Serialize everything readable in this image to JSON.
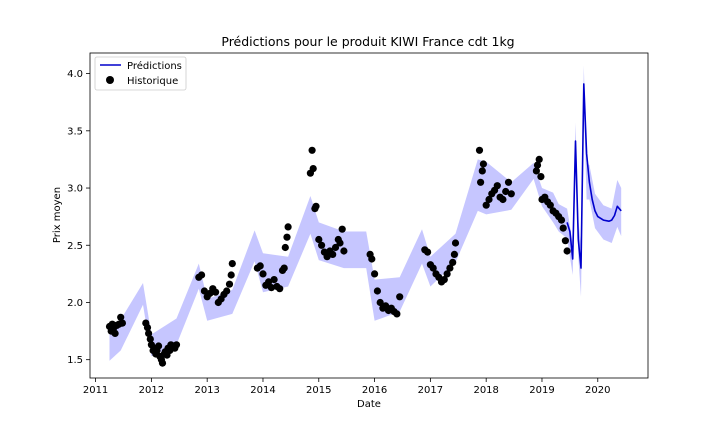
{
  "chart_data": {
    "type": "line",
    "title": "Prédictions pour le produit KIWI France cdt 1kg",
    "xlabel": "Date",
    "ylabel": "Prix moyen",
    "xlim": [
      2010.9,
      2020.9
    ],
    "ylim": [
      1.34,
      4.18
    ],
    "x_ticks": [
      2011,
      2012,
      2013,
      2014,
      2015,
      2016,
      2017,
      2018,
      2019,
      2020
    ],
    "x_tick_labels": [
      "2011",
      "2012",
      "2013",
      "2014",
      "2015",
      "2016",
      "2017",
      "2018",
      "2019",
      "2020"
    ],
    "y_ticks": [
      1.5,
      2.0,
      2.5,
      3.0,
      3.5,
      4.0
    ],
    "y_tick_labels": [
      "1.5",
      "2.0",
      "2.5",
      "3.0",
      "3.5",
      "4.0"
    ],
    "legend": {
      "position": "top-left",
      "entries": [
        {
          "label": "Prédictions",
          "marker": "line",
          "color": "#0000cc"
        },
        {
          "label": "Historique",
          "marker": "dot",
          "color": "#000000"
        }
      ]
    },
    "colors": {
      "prediction_line": "#0000cc",
      "interval_fill": "#b3b3ff",
      "points": "#000000"
    },
    "grid": false,
    "confidence_band": {
      "x": [
        2011.25,
        2011.45,
        2011.85,
        2012.0,
        2012.45,
        2012.85,
        2013.0,
        2013.45,
        2013.85,
        2014.0,
        2014.45,
        2014.85,
        2015.0,
        2015.45,
        2015.85,
        2016.0,
        2016.45,
        2016.85,
        2017.0,
        2017.45,
        2017.85,
        2018.0,
        2018.45,
        2018.85,
        2019.0,
        2019.2,
        2019.3,
        2019.45,
        2019.55,
        2019.6,
        2019.65,
        2019.7,
        2019.75,
        2019.8,
        2019.85,
        2019.95,
        2020.1,
        2020.25,
        2020.35,
        2020.42
      ],
      "lower": [
        1.49,
        1.58,
        1.98,
        1.53,
        1.63,
        2.12,
        1.84,
        1.9,
        2.36,
        2.09,
        2.14,
        2.6,
        2.37,
        2.3,
        2.3,
        1.84,
        1.92,
        2.34,
        2.14,
        2.35,
        2.8,
        2.77,
        2.81,
        3.08,
        2.84,
        2.7,
        2.62,
        2.56,
        2.24,
        3.25,
        2.4,
        2.05,
        3.75,
        2.9,
        2.9,
        2.65,
        2.55,
        2.52,
        2.66,
        2.58
      ],
      "upper": [
        1.76,
        1.85,
        2.17,
        1.72,
        1.86,
        2.34,
        2.03,
        2.11,
        2.63,
        2.43,
        2.4,
        2.93,
        2.7,
        2.62,
        2.62,
        2.2,
        2.22,
        2.64,
        2.4,
        2.6,
        3.25,
        3.23,
        3.05,
        3.22,
        3.0,
        2.96,
        2.86,
        2.82,
        2.52,
        3.57,
        2.72,
        2.5,
        4.07,
        3.22,
        3.2,
        2.95,
        2.85,
        2.82,
        3.07,
        3.0
      ]
    },
    "series": [
      {
        "name": "Prédictions",
        "type": "line",
        "x": [
          2019.45,
          2019.5,
          2019.55,
          2019.6,
          2019.65,
          2019.7,
          2019.75,
          2019.8,
          2019.85,
          2019.9,
          2019.95,
          2020.0,
          2020.1,
          2020.2,
          2020.25,
          2020.3,
          2020.35,
          2020.42
        ],
        "y": [
          2.7,
          2.62,
          2.38,
          3.41,
          2.55,
          2.3,
          3.91,
          3.3,
          3.05,
          2.9,
          2.8,
          2.75,
          2.72,
          2.71,
          2.72,
          2.76,
          2.84,
          2.8
        ]
      },
      {
        "name": "Historique",
        "type": "scatter",
        "x": [
          2011.25,
          2011.28,
          2011.3,
          2011.32,
          2011.35,
          2011.38,
          2011.42,
          2011.45,
          2011.48,
          2011.9,
          2011.93,
          2011.95,
          2011.98,
          2012.0,
          2012.03,
          2012.05,
          2012.08,
          2012.1,
          2012.13,
          2012.15,
          2012.18,
          2012.2,
          2012.23,
          2012.25,
          2012.28,
          2012.3,
          2012.33,
          2012.35,
          2012.38,
          2012.42,
          2012.45,
          2012.85,
          2012.9,
          2012.95,
          2013.0,
          2013.05,
          2013.1,
          2013.15,
          2013.2,
          2013.25,
          2013.3,
          2013.35,
          2013.4,
          2013.43,
          2013.45,
          2013.9,
          2013.95,
          2014.0,
          2014.05,
          2014.1,
          2014.15,
          2014.2,
          2014.25,
          2014.3,
          2014.35,
          2014.38,
          2014.4,
          2014.43,
          2014.45,
          2014.85,
          2014.88,
          2014.9,
          2014.93,
          2014.95,
          2015.0,
          2015.05,
          2015.1,
          2015.15,
          2015.2,
          2015.25,
          2015.3,
          2015.35,
          2015.38,
          2015.42,
          2015.45,
          2015.92,
          2015.95,
          2016.0,
          2016.05,
          2016.1,
          2016.15,
          2016.2,
          2016.25,
          2016.3,
          2016.35,
          2016.4,
          2016.45,
          2016.9,
          2016.95,
          2017.0,
          2017.05,
          2017.1,
          2017.15,
          2017.2,
          2017.25,
          2017.3,
          2017.35,
          2017.4,
          2017.43,
          2017.45,
          2017.88,
          2017.9,
          2017.93,
          2017.95,
          2018.0,
          2018.05,
          2018.1,
          2018.15,
          2018.2,
          2018.25,
          2018.3,
          2018.35,
          2018.4,
          2018.45,
          2018.9,
          2018.92,
          2018.95,
          2018.98,
          2019.0,
          2019.05,
          2019.1,
          2019.15,
          2019.2,
          2019.25,
          2019.3,
          2019.35,
          2019.38,
          2019.42,
          2019.45
        ],
        "y": [
          1.79,
          1.75,
          1.81,
          1.77,
          1.73,
          1.8,
          1.81,
          1.87,
          1.82,
          1.82,
          1.78,
          1.73,
          1.68,
          1.63,
          1.58,
          1.6,
          1.55,
          1.58,
          1.62,
          1.53,
          1.5,
          1.47,
          1.55,
          1.57,
          1.54,
          1.6,
          1.58,
          1.63,
          1.62,
          1.6,
          1.63,
          2.22,
          2.24,
          2.1,
          2.05,
          2.08,
          2.12,
          2.09,
          2.0,
          2.03,
          2.07,
          2.1,
          2.16,
          2.24,
          2.34,
          2.3,
          2.32,
          2.25,
          2.15,
          2.18,
          2.13,
          2.2,
          2.14,
          2.12,
          2.28,
          2.3,
          2.48,
          2.57,
          2.66,
          3.13,
          3.33,
          3.17,
          2.82,
          2.84,
          2.55,
          2.5,
          2.44,
          2.4,
          2.45,
          2.42,
          2.48,
          2.55,
          2.52,
          2.64,
          2.45,
          2.42,
          2.38,
          2.25,
          2.1,
          2.0,
          1.95,
          1.97,
          1.93,
          1.95,
          1.92,
          1.9,
          2.05,
          2.46,
          2.44,
          2.33,
          2.3,
          2.25,
          2.22,
          2.18,
          2.2,
          2.25,
          2.3,
          2.35,
          2.42,
          2.52,
          3.33,
          3.05,
          3.15,
          3.21,
          2.85,
          2.9,
          2.95,
          2.98,
          3.02,
          2.92,
          2.9,
          2.97,
          3.05,
          2.95,
          3.15,
          3.2,
          3.25,
          3.1,
          2.9,
          2.92,
          2.88,
          2.85,
          2.8,
          2.78,
          2.75,
          2.72,
          2.65,
          2.54,
          2.45
        ]
      }
    ]
  }
}
